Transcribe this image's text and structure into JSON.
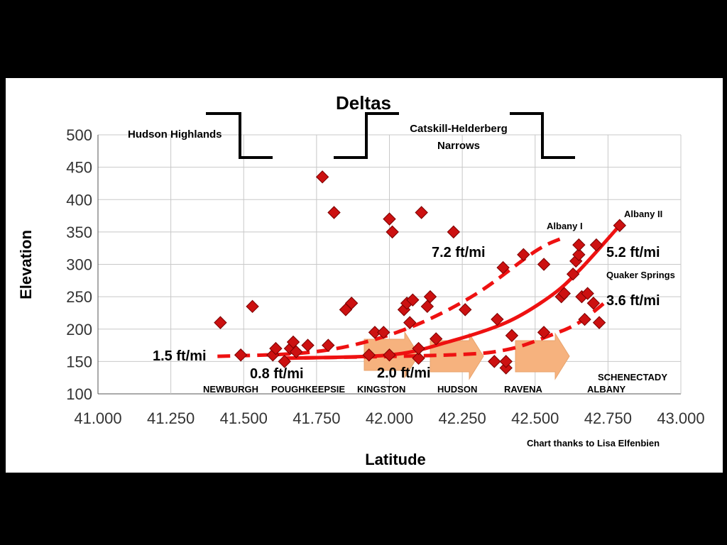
{
  "chart_data": {
    "type": "scatter",
    "title": "Deltas",
    "xlabel": "Latitude",
    "ylabel": "Elevation",
    "xlim": [
      41.0,
      43.0
    ],
    "ylim": [
      100,
      500
    ],
    "xticks": [
      "41.000",
      "41.250",
      "41.500",
      "41.750",
      "42.000",
      "42.250",
      "42.500",
      "42.750",
      "43.000"
    ],
    "yticks": [
      "100",
      "150",
      "200",
      "250",
      "300",
      "350",
      "400",
      "450",
      "500"
    ],
    "grid": true,
    "colors": {
      "points": "#cc1111",
      "trend": "#ee1111",
      "arrows": "#f6b27e"
    },
    "points": [
      [
        41.42,
        210
      ],
      [
        41.49,
        160
      ],
      [
        41.53,
        235
      ],
      [
        41.6,
        160
      ],
      [
        41.61,
        170
      ],
      [
        41.64,
        150
      ],
      [
        41.66,
        170
      ],
      [
        41.67,
        180
      ],
      [
        41.68,
        165
      ],
      [
        41.72,
        175
      ],
      [
        41.77,
        435
      ],
      [
        41.79,
        175
      ],
      [
        41.81,
        380
      ],
      [
        41.85,
        230
      ],
      [
        41.87,
        240
      ],
      [
        41.93,
        160
      ],
      [
        41.95,
        195
      ],
      [
        41.98,
        195
      ],
      [
        42.0,
        160
      ],
      [
        42.0,
        370
      ],
      [
        42.01,
        350
      ],
      [
        42.05,
        230
      ],
      [
        42.06,
        240
      ],
      [
        42.07,
        210
      ],
      [
        42.08,
        245
      ],
      [
        42.1,
        155
      ],
      [
        42.1,
        170
      ],
      [
        42.11,
        380
      ],
      [
        42.13,
        235
      ],
      [
        42.14,
        250
      ],
      [
        42.16,
        185
      ],
      [
        42.22,
        350
      ],
      [
        42.26,
        230
      ],
      [
        42.36,
        150
      ],
      [
        42.37,
        215
      ],
      [
        42.39,
        295
      ],
      [
        42.4,
        140
      ],
      [
        42.4,
        150
      ],
      [
        42.42,
        190
      ],
      [
        42.46,
        315
      ],
      [
        42.53,
        300
      ],
      [
        42.53,
        195
      ],
      [
        42.59,
        250
      ],
      [
        42.6,
        255
      ],
      [
        42.63,
        285
      ],
      [
        42.64,
        305
      ],
      [
        42.65,
        315
      ],
      [
        42.65,
        330
      ],
      [
        42.66,
        250
      ],
      [
        42.67,
        215
      ],
      [
        42.68,
        255
      ],
      [
        42.7,
        240
      ],
      [
        42.71,
        330
      ],
      [
        42.72,
        210
      ],
      [
        42.79,
        360
      ]
    ],
    "trendlines": [
      {
        "style": "dashed",
        "x": [
          41.41,
          41.7,
          41.9,
          42.1,
          42.3,
          42.5,
          42.59
        ],
        "y": [
          158,
          163,
          178,
          208,
          255,
          320,
          340
        ]
      },
      {
        "style": "solid",
        "x": [
          41.64,
          42.0,
          42.2,
          42.4,
          42.55,
          42.65,
          42.79
        ],
        "y": [
          155,
          160,
          180,
          210,
          250,
          290,
          360
        ]
      },
      {
        "style": "dashed",
        "x": [
          41.64,
          42.2,
          42.4,
          42.55,
          42.65,
          42.75
        ],
        "y": [
          155,
          160,
          168,
          190,
          210,
          245
        ]
      }
    ]
  },
  "annotations": {
    "hudson_highlands": "Hudson Highlands",
    "catskill_line1": "Catskill-Helderberg",
    "catskill_line2": "Narrows",
    "albany_i": "Albany I",
    "albany_ii": "Albany II",
    "quaker_springs": "Quaker Springs",
    "grad_7_2": "7.2 ft/mi",
    "grad_5_2": "5.2 ft/mi",
    "grad_3_6": "3.6 ft/mi",
    "grad_1_5": "1.5 ft/mi",
    "grad_0_8": "0.8 ft/mi",
    "grad_2_0": "2.0 ft/mi",
    "schenectady": "SCHENECTADY",
    "credit": "Chart thanks to Lisa Elfenbien"
  },
  "towns": [
    "NEWBURGH",
    "POUGHKEEPSIE",
    "KINGSTON",
    "HUDSON",
    "RAVENA",
    "ALBANY"
  ]
}
